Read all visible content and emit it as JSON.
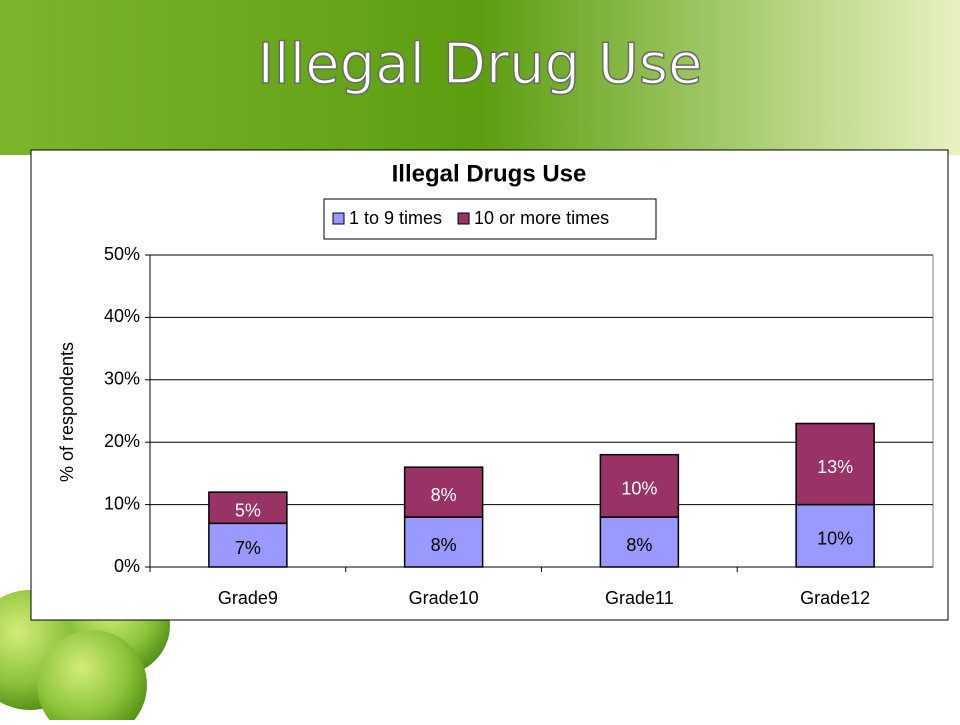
{
  "slide_title": "Illegal Drug Use",
  "chart_data": {
    "type": "stacked_bar",
    "title": "Illegal Drugs Use",
    "y_label": "% of respondents",
    "categories": [
      "Grade9",
      "Grade10",
      "Grade11",
      "Grade12"
    ],
    "series": [
      {
        "name": "1 to 9 times",
        "color": "#9999ff",
        "values": [
          7,
          8,
          8,
          10
        ],
        "value_labels": [
          "7%",
          "8%",
          "8%",
          "10%"
        ]
      },
      {
        "name": "10 or more times",
        "color": "#993366",
        "values": [
          5,
          8,
          10,
          13
        ],
        "value_labels": [
          "5%",
          "8%",
          "10%",
          "13%"
        ]
      }
    ],
    "ylim": [
      0,
      50
    ],
    "yticks": [
      {
        "value": 0,
        "label": "0%"
      },
      {
        "value": 10,
        "label": "10%"
      },
      {
        "value": 20,
        "label": "20%"
      },
      {
        "value": 30,
        "label": "30%"
      },
      {
        "value": 40,
        "label": "40%"
      },
      {
        "value": 50,
        "label": "50%"
      }
    ],
    "grid": true,
    "legend": "top"
  }
}
